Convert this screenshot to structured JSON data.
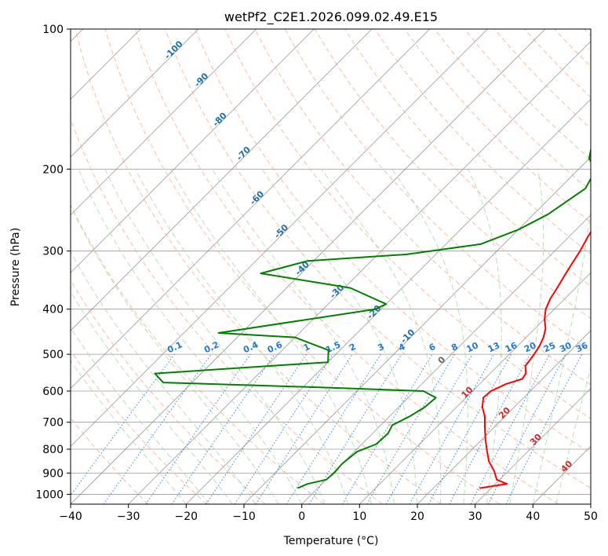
{
  "chart_data": {
    "type": "line",
    "title": "wetPf2_C2E1.2026.099.02.49.E15",
    "xlabel": "Temperature (°C)",
    "ylabel": "Pressure (hPa)",
    "xlim": [
      -40,
      50
    ],
    "ylim": [
      1050,
      100
    ],
    "y_scale": "log",
    "x_ticks": [
      "−40",
      "−30",
      "−20",
      "−10",
      "0",
      "10",
      "20",
      "30",
      "40",
      "50"
    ],
    "y_ticks": [
      "100",
      "200",
      "300",
      "400",
      "500",
      "600",
      "700",
      "800",
      "900",
      "1000"
    ],
    "dry_adiabat_labels": [
      "-100",
      "-90",
      "-80",
      "-70",
      "-60",
      "-50",
      "-40",
      "-30",
      "-20",
      "-10"
    ],
    "mixing_ratio_labels": [
      "0.1",
      "0.2",
      "0.4",
      "0.6",
      "1",
      "1.5",
      "2",
      "3",
      "4",
      "6",
      "8",
      "10",
      "13",
      "16",
      "20",
      "25",
      "30",
      "36"
    ],
    "moist_adiabat_labels": [
      "0",
      "10",
      "20",
      "30",
      "40"
    ],
    "colors": {
      "temperature": "#ff0000",
      "dewpoint": "#008000",
      "isotherm": "#808080",
      "dry_adiabat": "#f4a582",
      "moist_adiabat": "#a6d8a0",
      "mixing_ratio": "#1f78d1",
      "dry_label": "#1f6fa8",
      "moist_label": "#d62728"
    },
    "series": [
      {
        "name": "Temperature",
        "points": [
          [
            28,
            970
          ],
          [
            32,
            950
          ],
          [
            29.5,
            930
          ],
          [
            27.5,
            890
          ],
          [
            25,
            850
          ],
          [
            22.5,
            800
          ],
          [
            20.5,
            760
          ],
          [
            18.5,
            720
          ],
          [
            16.5,
            680
          ],
          [
            14.5,
            650
          ],
          [
            13,
            620
          ],
          [
            13.2,
            600
          ],
          [
            14.5,
            580
          ],
          [
            16.5,
            565
          ],
          [
            16.2,
            550
          ],
          [
            14.8,
            530
          ],
          [
            14.3,
            500
          ],
          [
            13.8,
            480
          ],
          [
            13,
            460
          ],
          [
            11.8,
            440
          ],
          [
            10,
            420
          ],
          [
            8.5,
            400
          ],
          [
            7.5,
            380
          ],
          [
            6.8,
            360
          ],
          [
            6,
            340
          ],
          [
            5.2,
            320
          ],
          [
            4.4,
            300
          ],
          [
            3.3,
            280
          ],
          [
            2.3,
            260
          ],
          [
            1.6,
            240
          ],
          [
            1.4,
            220
          ],
          [
            2,
            200
          ],
          [
            2.2,
            185
          ],
          [
            2.3,
            170
          ],
          [
            3.2,
            160
          ],
          [
            3.6,
            150
          ],
          [
            3.2,
            140
          ],
          [
            3.8,
            130
          ],
          [
            5.3,
            120
          ],
          [
            7.8,
            110
          ],
          [
            11.5,
            100
          ]
        ]
      },
      {
        "name": "Dewpoint",
        "points": [
          [
            -3.5,
            970
          ],
          [
            -2.5,
            950
          ],
          [
            0,
            930
          ],
          [
            0.2,
            900
          ],
          [
            0,
            860
          ],
          [
            0.5,
            810
          ],
          [
            2.5,
            780
          ],
          [
            2.7,
            740
          ],
          [
            2,
            710
          ],
          [
            3.5,
            680
          ],
          [
            4.5,
            650
          ],
          [
            4.8,
            620
          ],
          [
            1.5,
            600
          ],
          [
            -15,
            590
          ],
          [
            -45,
            575
          ],
          [
            -48,
            550
          ],
          [
            -20,
            520
          ],
          [
            -22,
            490
          ],
          [
            -30,
            460
          ],
          [
            -44,
            450
          ],
          [
            -21,
            400
          ],
          [
            -20,
            390
          ],
          [
            -29,
            360
          ],
          [
            -47,
            335
          ],
          [
            -41,
            315
          ],
          [
            -25,
            305
          ],
          [
            -14,
            290
          ],
          [
            -10,
            270
          ],
          [
            -7.5,
            250
          ],
          [
            -5.5,
            220
          ],
          [
            -7,
            200
          ],
          [
            -10,
            190
          ],
          [
            -11.5,
            180
          ],
          [
            -12,
            165
          ],
          [
            -11,
            150
          ],
          [
            -7.5,
            130
          ],
          [
            -5,
            115
          ],
          [
            -3,
            100
          ]
        ]
      }
    ]
  }
}
